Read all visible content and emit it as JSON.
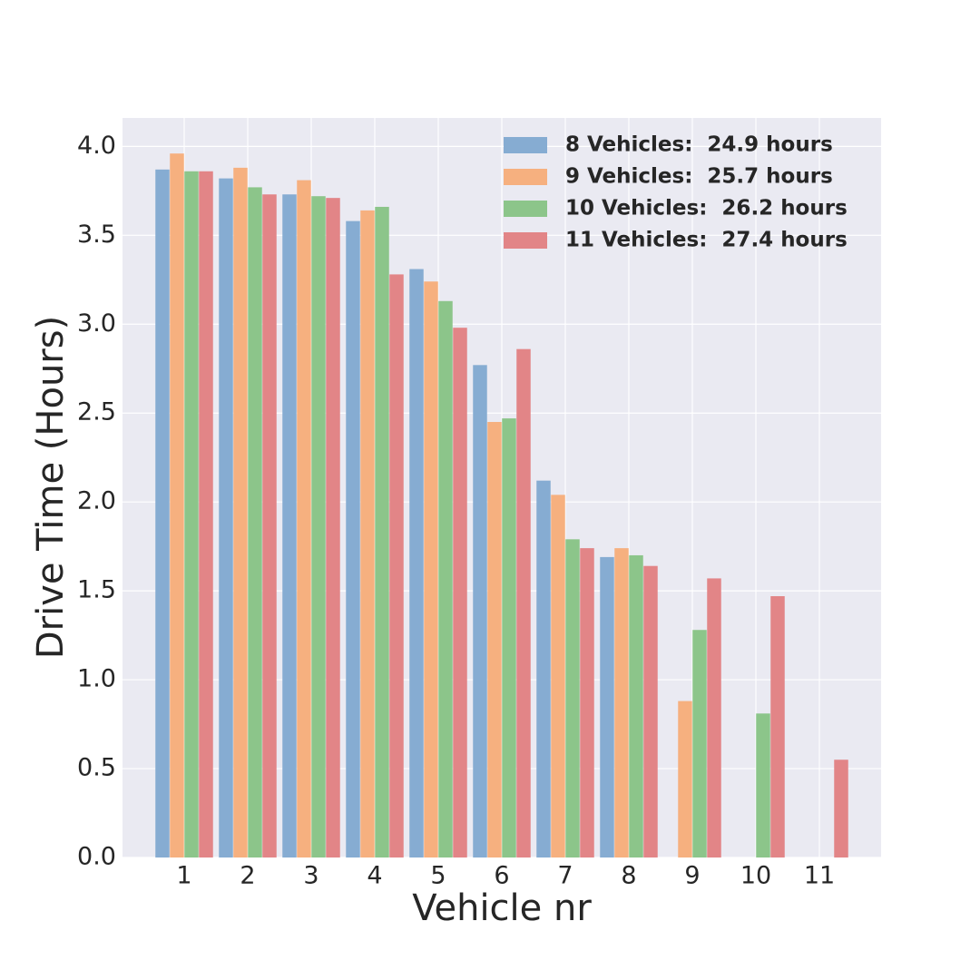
{
  "chart_data": {
    "type": "bar",
    "x_label": "Vehicle nr",
    "y_label": "Drive Time (Hours)",
    "categories": [
      "1",
      "2",
      "3",
      "4",
      "5",
      "6",
      "7",
      "8",
      "9",
      "10",
      "11"
    ],
    "series": [
      {
        "name": "8 Vehicles:  24.9 hours",
        "color": "#86acd2",
        "values": [
          3.87,
          3.82,
          3.73,
          3.58,
          3.31,
          2.77,
          2.12,
          1.69,
          null,
          null,
          null
        ]
      },
      {
        "name": "9 Vehicles:  25.7 hours",
        "color": "#f6b07f",
        "values": [
          3.96,
          3.88,
          3.81,
          3.64,
          3.24,
          2.45,
          2.04,
          1.74,
          0.88,
          null,
          null
        ]
      },
      {
        "name": "10 Vehicles:  26.2 hours",
        "color": "#8cc58a",
        "values": [
          3.86,
          3.77,
          3.72,
          3.66,
          3.13,
          2.47,
          1.79,
          1.7,
          1.28,
          0.81,
          null
        ]
      },
      {
        "name": "11 Vehicles:  27.4 hours",
        "color": "#e28587",
        "values": [
          3.86,
          3.73,
          3.71,
          3.28,
          2.98,
          2.86,
          1.74,
          1.64,
          1.57,
          1.47,
          0.55
        ]
      }
    ],
    "ylim": [
      0,
      4.16
    ],
    "yticks": [
      {
        "value": 0,
        "label": "0.0"
      },
      0.5,
      {
        "value": 1,
        "label": "1.0"
      },
      1.5,
      {
        "value": 2,
        "label": "2.0"
      },
      2.5,
      {
        "value": 3,
        "label": "3.0"
      },
      3.5,
      {
        "value": 4,
        "label": "4.0"
      }
    ],
    "grid": true,
    "legend": "upper right"
  }
}
